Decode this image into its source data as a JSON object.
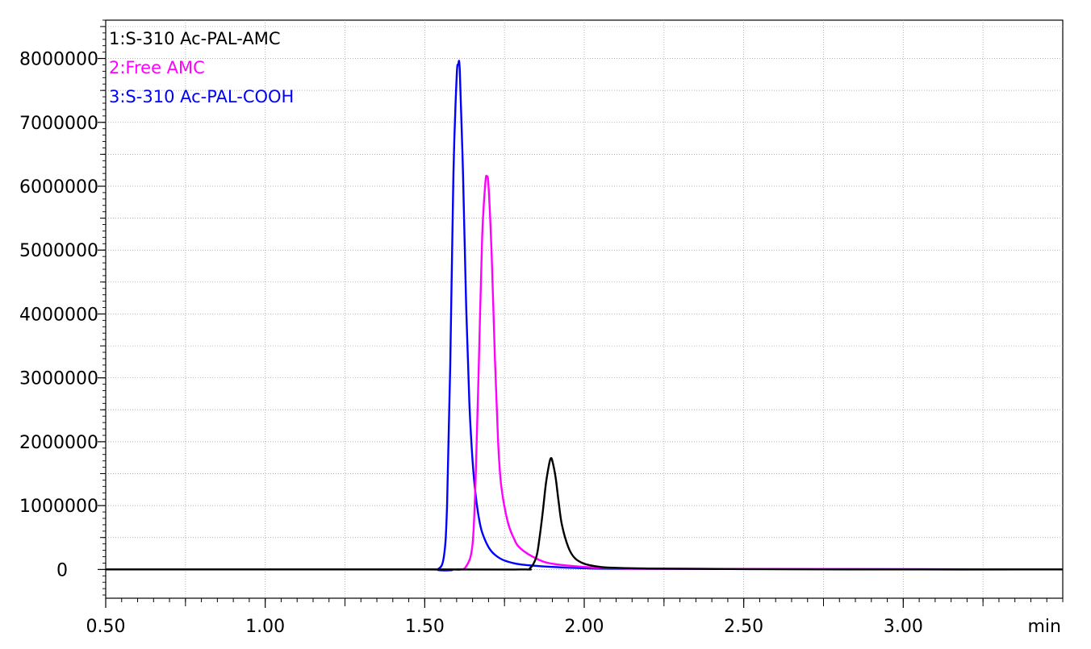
{
  "chart_data": {
    "type": "line",
    "title": "",
    "xlabel": "",
    "ylabel": "",
    "x_unit": "min",
    "xlim": [
      0.5,
      3.5
    ],
    "ylim": [
      -450000,
      8600000
    ],
    "x_ticks": [
      0.5,
      1.0,
      1.5,
      2.0,
      2.5,
      3.0
    ],
    "x_tick_labels": [
      "0.50",
      "1.00",
      "1.50",
      "2.00",
      "2.50",
      "3.00"
    ],
    "y_ticks": [
      0,
      1000000,
      2000000,
      3000000,
      4000000,
      5000000,
      6000000,
      7000000,
      8000000
    ],
    "y_tick_labels": [
      "0",
      "1000000",
      "2000000",
      "3000000",
      "4000000",
      "5000000",
      "6000000",
      "7000000",
      "8000000"
    ],
    "grid": true,
    "legend_position": "top-left",
    "series": [
      {
        "name": "1:S-310 Ac-PAL-AMC",
        "color": "#000000",
        "x": [
          0.5,
          1.5,
          1.8,
          1.83,
          1.85,
          1.86,
          1.87,
          1.88,
          1.89,
          1.895,
          1.9,
          1.91,
          1.92,
          1.93,
          1.95,
          1.97,
          2.0,
          2.05,
          2.1,
          2.2,
          2.5,
          3.0,
          3.5
        ],
        "y": [
          0,
          0,
          0,
          20000,
          200000,
          500000,
          900000,
          1350000,
          1650000,
          1740000,
          1700000,
          1450000,
          1050000,
          700000,
          350000,
          180000,
          90000,
          40000,
          25000,
          15000,
          5000,
          0,
          0
        ]
      },
      {
        "name": "2:Free AMC",
        "color": "#ff00ff",
        "x": [
          0.5,
          1.5,
          1.6,
          1.63,
          1.65,
          1.66,
          1.67,
          1.68,
          1.69,
          1.695,
          1.7,
          1.71,
          1.72,
          1.73,
          1.74,
          1.76,
          1.78,
          1.8,
          1.85,
          1.9,
          2.0,
          2.1,
          2.3,
          3.5
        ],
        "y": [
          0,
          0,
          0,
          50000,
          400000,
          1500000,
          3300000,
          5200000,
          6050000,
          6150000,
          6000000,
          4900000,
          3300000,
          2000000,
          1300000,
          750000,
          480000,
          330000,
          170000,
          90000,
          40000,
          20000,
          10000,
          0
        ]
      },
      {
        "name": "3:S-310 Ac-PAL-COOH",
        "color": "#0000ff",
        "x": [
          0.5,
          1.5,
          1.54,
          1.56,
          1.57,
          1.58,
          1.59,
          1.6,
          1.605,
          1.61,
          1.62,
          1.63,
          1.64,
          1.65,
          1.66,
          1.67,
          1.68,
          1.7,
          1.72,
          1.75,
          1.8,
          1.9,
          2.0,
          2.2,
          3.5
        ],
        "y": [
          0,
          0,
          0,
          200000,
          1000000,
          3200000,
          6200000,
          7700000,
          7900000,
          7800000,
          6200000,
          4100000,
          2600000,
          1700000,
          1150000,
          800000,
          580000,
          350000,
          230000,
          140000,
          80000,
          40000,
          20000,
          10000,
          0
        ]
      }
    ]
  }
}
